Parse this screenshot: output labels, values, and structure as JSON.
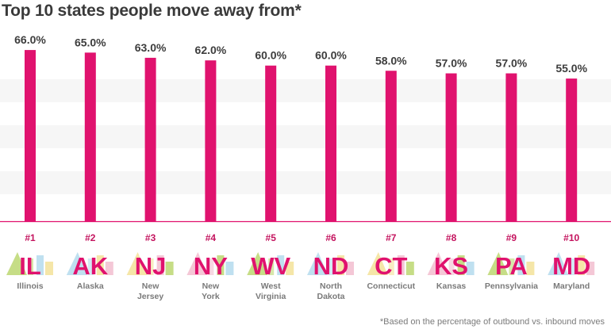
{
  "title": "Top 10 states people move away from*",
  "footnote": "*Based on the percentage of outbound vs. inbound moves",
  "colors": {
    "bar": "#e0126e",
    "band": "#f6f6f6",
    "baseline": "#e0126e",
    "rank": "#c4135e",
    "decor_green": "#c6dd86",
    "decor_blue": "#bfe0f0",
    "decor_yellow": "#f5e6a8",
    "decor_pink": "#f4c7d6"
  },
  "chart_data": {
    "type": "bar",
    "title": "Top 10 states people move away from*",
    "categories": [
      "Illinois",
      "Alaska",
      "New Jersey",
      "New York",
      "West Virginia",
      "North Dakota",
      "Connecticut",
      "Kansas",
      "Pennsylvania",
      "Maryland"
    ],
    "values": [
      66.0,
      65.0,
      63.0,
      62.0,
      60.0,
      60.0,
      58.0,
      57.0,
      57.0,
      55.0
    ],
    "value_labels": [
      "66.0%",
      "65.0%",
      "63.0%",
      "62.0%",
      "60.0%",
      "60.0%",
      "58.0%",
      "57.0%",
      "57.0%",
      "55.0%"
    ],
    "ranks": [
      "#1",
      "#2",
      "#3",
      "#4",
      "#5",
      "#6",
      "#7",
      "#8",
      "#9",
      "#10"
    ],
    "abbreviations": [
      "IL",
      "AK",
      "NJ",
      "NY",
      "WV",
      "ND",
      "CT",
      "KS",
      "PA",
      "MD"
    ],
    "name_lines": [
      [
        "Illinois"
      ],
      [
        "Alaska"
      ],
      [
        "New",
        "Jersey"
      ],
      [
        "New",
        "York"
      ],
      [
        "West",
        "Virginia"
      ],
      [
        "North",
        "Dakota"
      ],
      [
        "Connecticut"
      ],
      [
        "Kansas"
      ],
      [
        "Pennsylvania"
      ],
      [
        "Maryland"
      ]
    ],
    "ylim": [
      0,
      70
    ],
    "grid": "alternating bands",
    "xlabel": "",
    "ylabel": ""
  }
}
